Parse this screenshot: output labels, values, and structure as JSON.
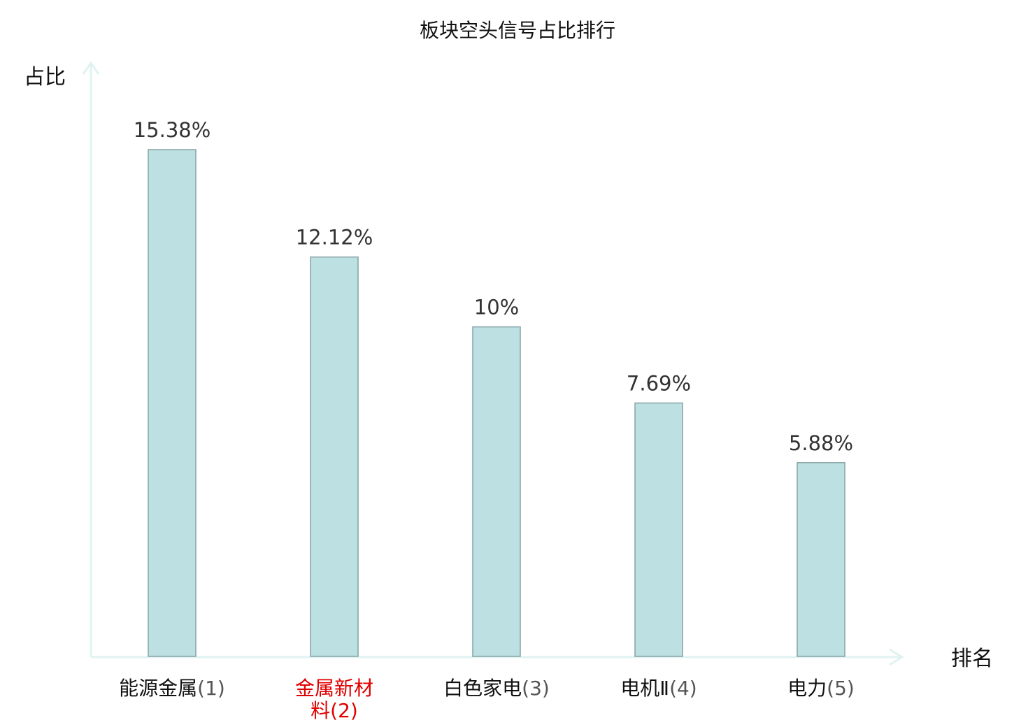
{
  "chart_data": {
    "type": "bar",
    "title": "板块空头信号占比排行",
    "ylabel": "占比",
    "xlabel": "排名",
    "categories": [
      {
        "name": "能源金属",
        "rank": "(1)",
        "highlight": false
      },
      {
        "name": "金属新材料",
        "rank": "(2)",
        "highlight": true
      },
      {
        "name": "白色家电",
        "rank": "(3)",
        "highlight": false
      },
      {
        "name": "电机Ⅱ",
        "rank": "(4)",
        "highlight": false
      },
      {
        "name": "电力",
        "rank": "(5)",
        "highlight": false
      }
    ],
    "values": [
      15.38,
      12.12,
      10,
      7.69,
      5.88
    ],
    "value_labels": [
      "15.38%",
      "12.12%",
      "10%",
      "7.69%",
      "5.88%"
    ],
    "ylim": [
      0,
      18
    ],
    "grid": false,
    "legend": "none"
  },
  "colors": {
    "bar_fill": "#bde0e2",
    "bar_stroke": "#86a3a5",
    "axis": "#e0f3f1",
    "highlight_label": "#e00000",
    "normal_label": "#111111"
  }
}
